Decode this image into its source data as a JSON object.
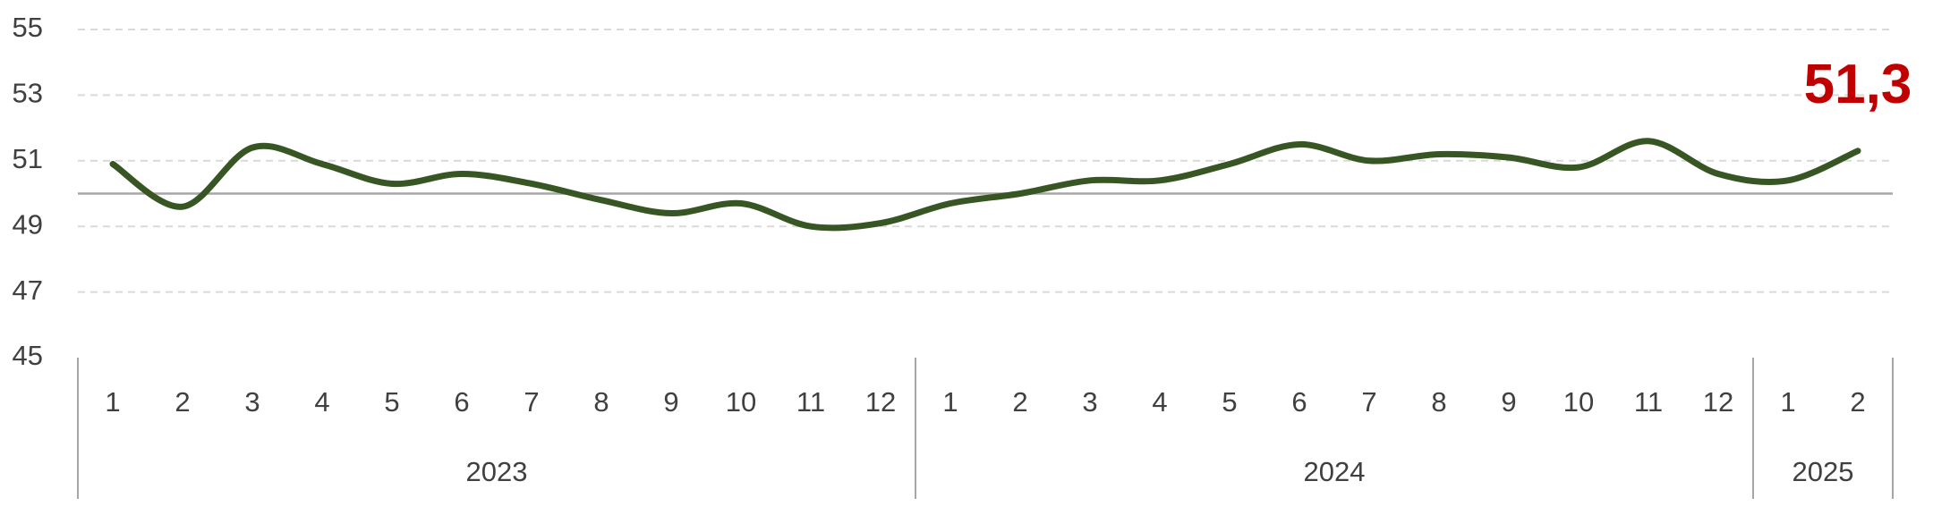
{
  "chart_data": {
    "type": "line",
    "groups": [
      {
        "name": "2023",
        "categories": [
          "1",
          "2",
          "3",
          "4",
          "5",
          "6",
          "7",
          "8",
          "9",
          "10",
          "11",
          "12"
        ]
      },
      {
        "name": "2024",
        "categories": [
          "1",
          "2",
          "3",
          "4",
          "5",
          "6",
          "7",
          "8",
          "9",
          "10",
          "11",
          "12"
        ]
      },
      {
        "name": "2025",
        "categories": [
          "1",
          "2"
        ]
      }
    ],
    "series": [
      {
        "color": "#375623",
        "values": [
          50.9,
          49.6,
          51.4,
          50.9,
          50.3,
          50.6,
          50.3,
          49.8,
          49.4,
          49.7,
          49.0,
          49.1,
          49.7,
          50.0,
          50.4,
          50.4,
          50.9,
          51.5,
          51.0,
          51.2,
          51.1,
          50.8,
          51.6,
          50.6,
          50.4,
          51.3
        ],
        "value_labels": [
          null,
          null,
          null,
          null,
          null,
          null,
          null,
          null,
          null,
          null,
          null,
          null,
          null,
          null,
          null,
          null,
          null,
          null,
          null,
          null,
          null,
          null,
          null,
          null,
          null,
          "51,3"
        ],
        "label_color": "#c00000"
      }
    ],
    "ylim": [
      45,
      55
    ],
    "yticks": [
      45,
      47,
      49,
      51,
      53,
      55
    ],
    "grid": true,
    "reference_line": 50
  }
}
